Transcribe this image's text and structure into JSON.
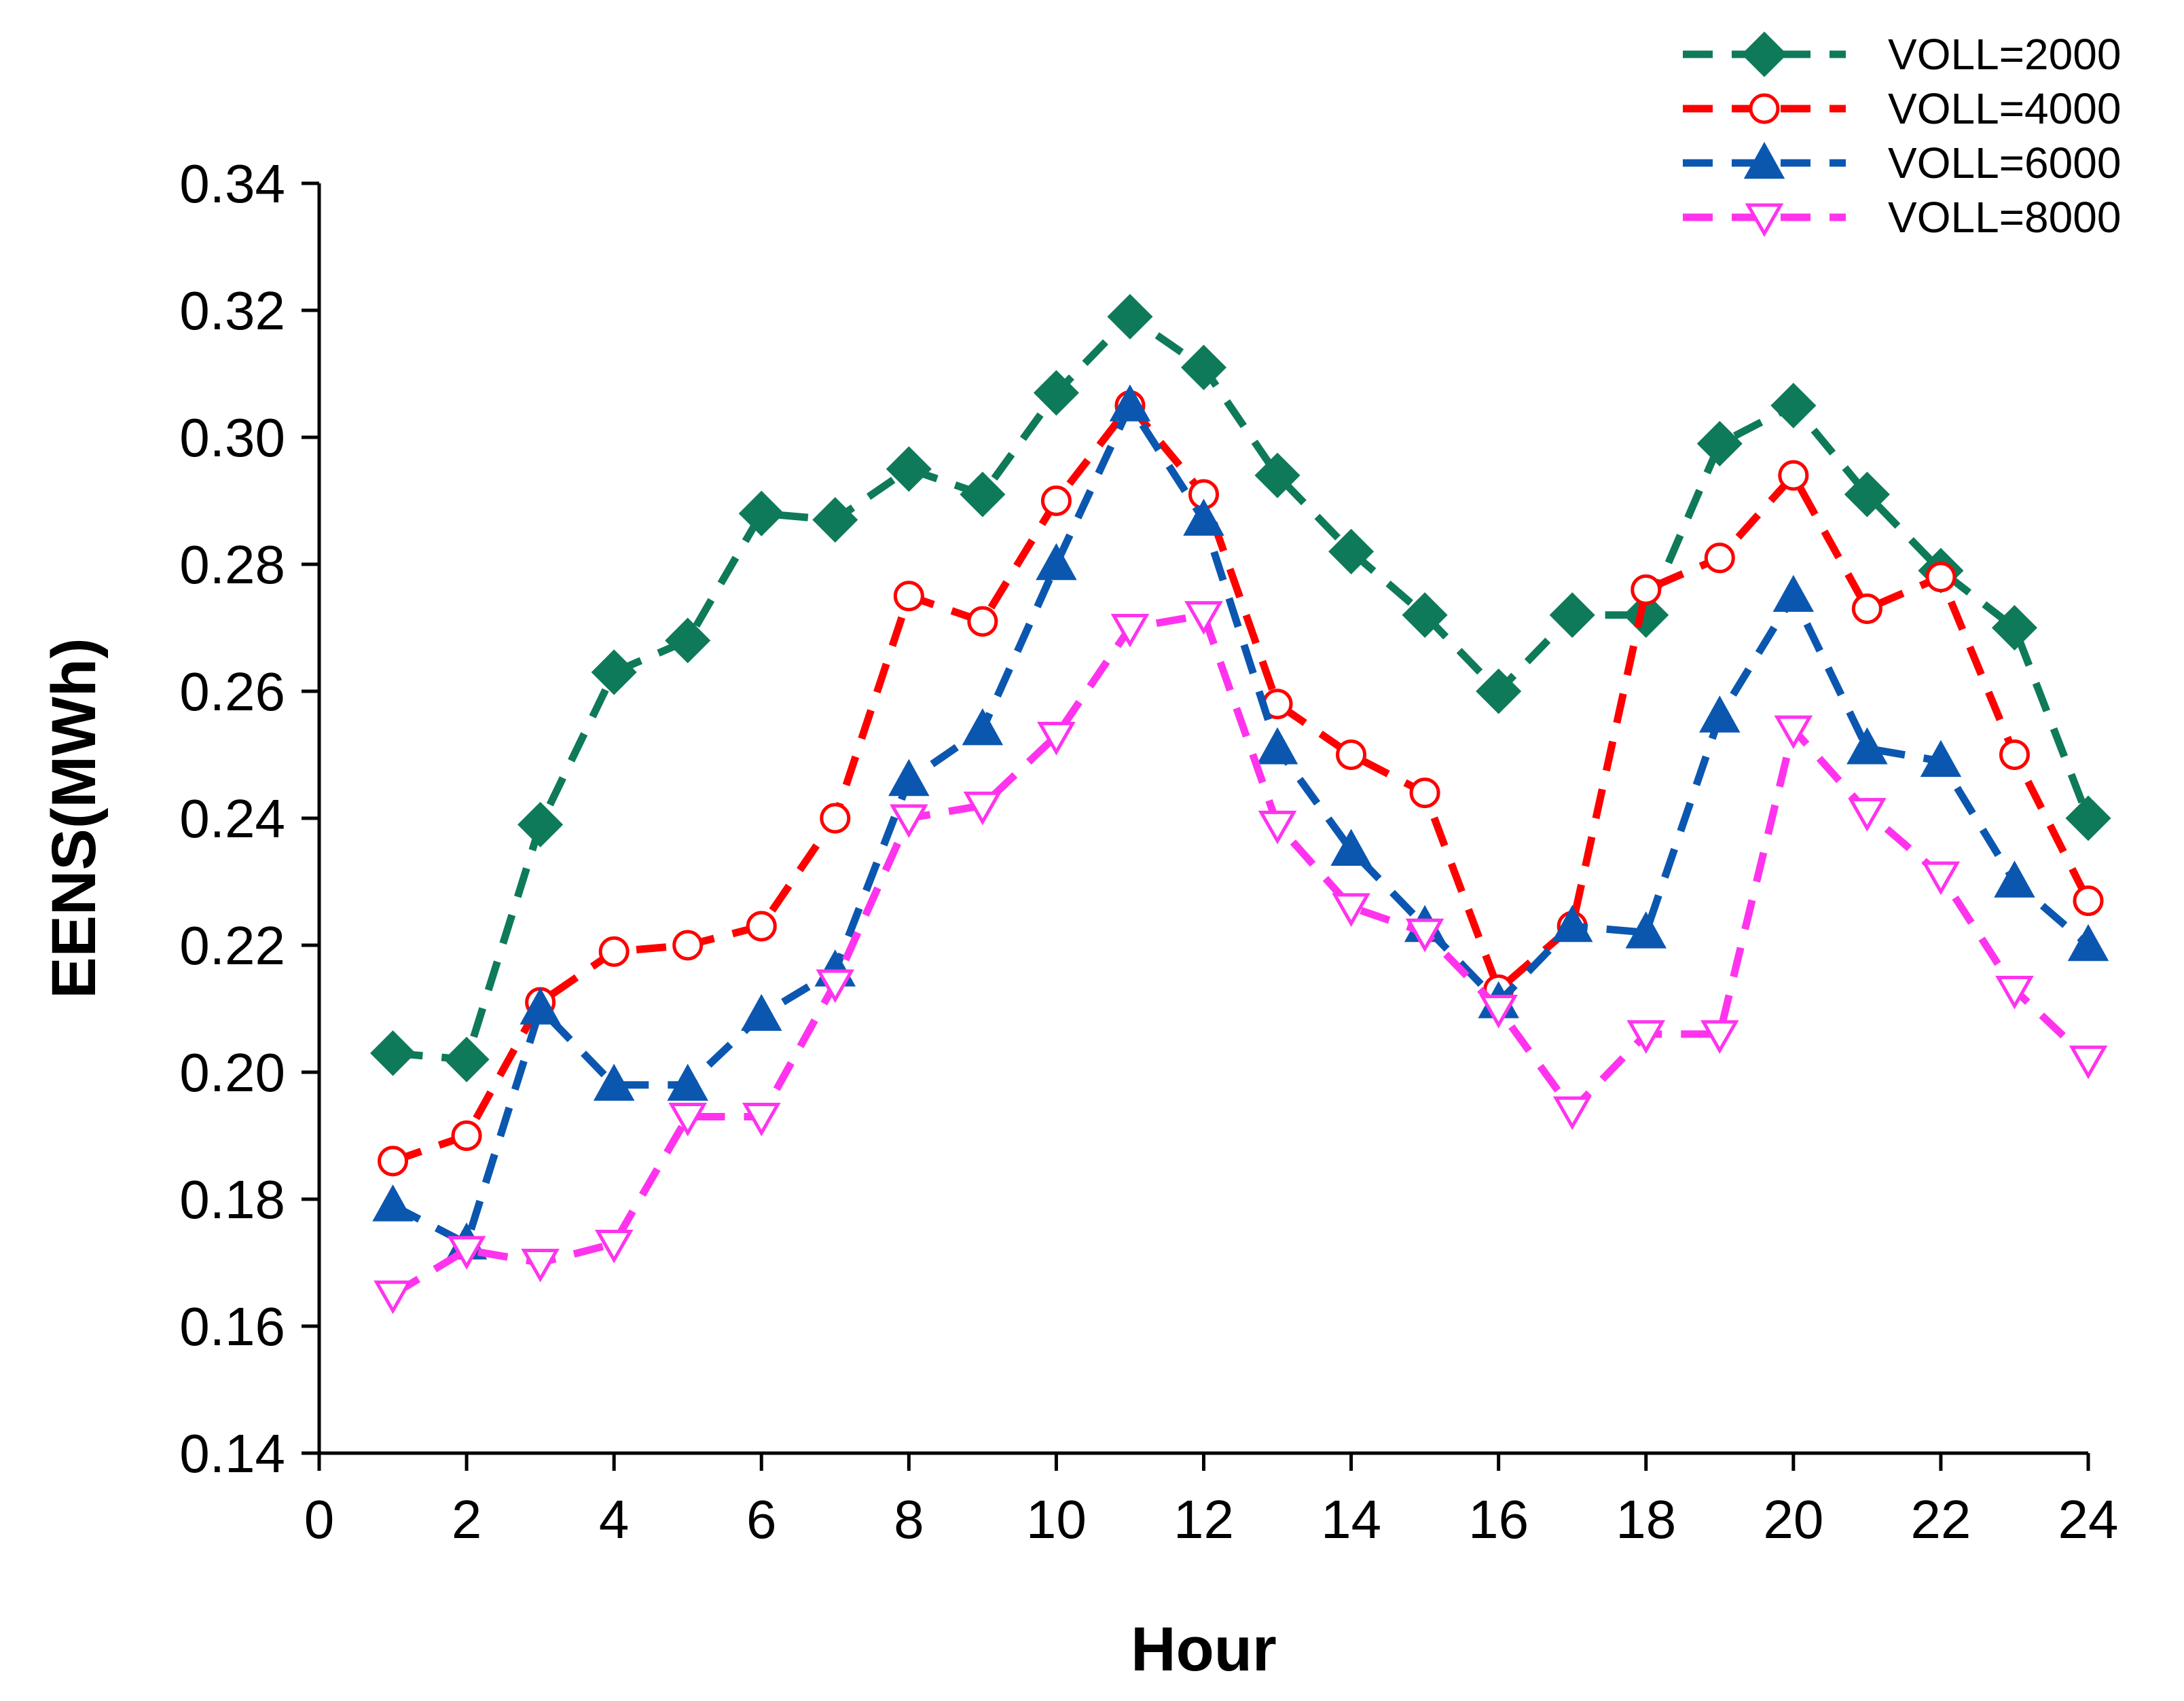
{
  "chart_data": {
    "type": "line",
    "title": "",
    "xlabel": "Hour",
    "ylabel": "EENS(MWh)",
    "xlim": [
      0,
      24
    ],
    "ylim": [
      0.14,
      0.34
    ],
    "xticks": [
      0,
      2,
      4,
      6,
      8,
      10,
      12,
      14,
      16,
      18,
      20,
      22,
      24
    ],
    "yticks": [
      0.14,
      0.16,
      0.18,
      0.2,
      0.22,
      0.24,
      0.26,
      0.28,
      0.3,
      0.32,
      0.34
    ],
    "ytick_labels": [
      "0.14",
      "0.16",
      "0.18",
      "0.20",
      "0.22",
      "0.24",
      "0.26",
      "0.28",
      "0.30",
      "0.32",
      "0.34"
    ],
    "grid": false,
    "legend_position": "top-right",
    "x": [
      1,
      2,
      3,
      4,
      5,
      6,
      7,
      8,
      9,
      10,
      11,
      12,
      13,
      14,
      15,
      16,
      17,
      18,
      19,
      20,
      21,
      22,
      23,
      24
    ],
    "series": [
      {
        "name": "VOLL=2000",
        "color": "#0e7a5a",
        "marker": "diamond",
        "marker_fill": "filled",
        "values": [
          0.203,
          0.202,
          0.239,
          0.263,
          0.268,
          0.288,
          0.287,
          0.295,
          0.291,
          0.307,
          0.319,
          0.311,
          0.294,
          0.282,
          0.272,
          0.26,
          0.272,
          0.272,
          0.299,
          0.305,
          0.291,
          0.279,
          0.27,
          0.24
        ]
      },
      {
        "name": "VOLL=4000",
        "color": "#ff0000",
        "marker": "circle",
        "marker_fill": "open",
        "values": [
          0.186,
          0.19,
          0.211,
          0.219,
          0.22,
          0.223,
          0.24,
          0.275,
          0.271,
          0.29,
          0.305,
          0.291,
          0.258,
          0.25,
          0.244,
          0.213,
          0.223,
          0.276,
          0.281,
          0.294,
          0.273,
          0.278,
          0.25,
          0.227
        ]
      },
      {
        "name": "VOLL=6000",
        "color": "#0b57b0",
        "marker": "triangle-up",
        "marker_fill": "filled",
        "values": [
          0.179,
          0.173,
          0.21,
          0.198,
          0.198,
          0.209,
          0.216,
          0.246,
          0.254,
          0.28,
          0.305,
          0.287,
          0.251,
          0.235,
          0.223,
          0.211,
          0.223,
          0.222,
          0.256,
          0.275,
          0.251,
          0.249,
          0.23,
          0.22
        ]
      },
      {
        "name": "VOLL=8000",
        "color": "#ff33ee",
        "marker": "triangle-down",
        "marker_fill": "open",
        "values": [
          0.165,
          0.172,
          0.17,
          0.173,
          0.193,
          0.193,
          0.214,
          0.24,
          0.242,
          0.253,
          0.27,
          0.272,
          0.239,
          0.226,
          0.222,
          0.21,
          0.194,
          0.206,
          0.206,
          0.254,
          0.241,
          0.231,
          0.213,
          0.202
        ]
      }
    ]
  }
}
